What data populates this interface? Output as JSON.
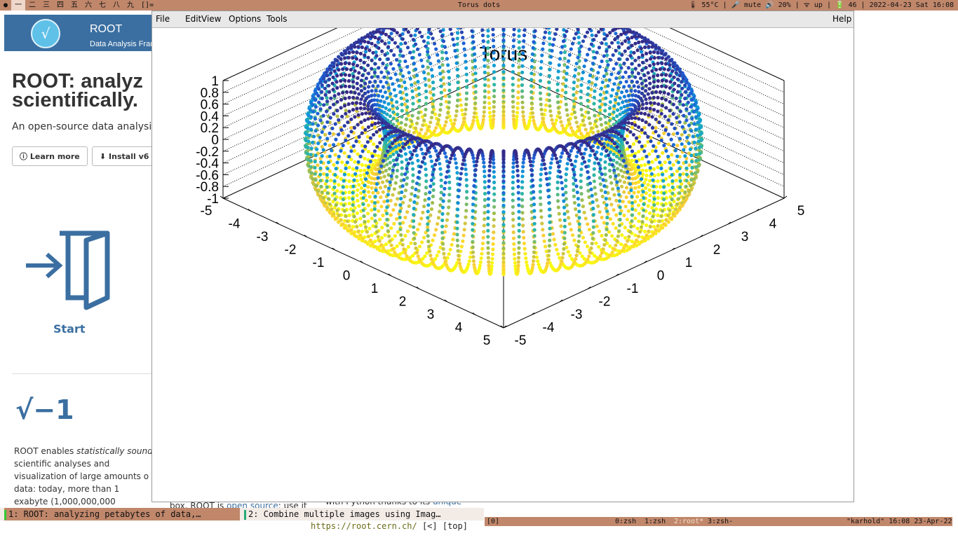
{
  "topbar": {
    "workspaces": [
      "一",
      "二",
      "三",
      "四",
      "五",
      "六",
      "七",
      "八",
      "九",
      "[]="
    ],
    "window_title": "Torus dots",
    "status": "🌡 55°C | 🎤 mute 🔊 20% | ᯤ up | 🔋 46 | 2022-04-23 Sat 16:08"
  },
  "site": {
    "brand": "ROOT",
    "brand_sub": "Data Analysis Fram",
    "headline": "ROOT: analyz\nscientifically.",
    "lead": "An open-source data analysis",
    "learn_more": "Learn more",
    "install": "Install v6",
    "start_label": "Start",
    "sqrt_symbol": "√−1",
    "para_1": "ROOT enables ",
    "para_italic": "statistically sound",
    "para_2": " scientific analyses and visualization of large amounts o data: today, more than 1 exabyte (1,000,000,000",
    "frag1_a": "box. ROOT is ",
    "frag1_link": "open source",
    "frag1_b": ": use it",
    "frag2_a": "with Python thanks to its ",
    "frag2_link": "unique"
  },
  "menu": {
    "file": "File",
    "edit": "Edit",
    "view": "View",
    "options": "Options",
    "tools": "Tools",
    "help": "Help"
  },
  "chart_data": {
    "type": "scatter",
    "title": "Torus",
    "xlabel": "",
    "ylabel": "",
    "zlabel": "",
    "xlim": [
      -5,
      5
    ],
    "ylim": [
      -5,
      5
    ],
    "zlim": [
      -1,
      1
    ],
    "x_ticks": [
      "-5",
      "-4",
      "-3",
      "-2",
      "-1",
      "0",
      "1",
      "2",
      "3",
      "4",
      "5"
    ],
    "y_ticks": [
      "-5",
      "-4",
      "-3",
      "-2",
      "-1",
      "0",
      "1",
      "2",
      "3",
      "4",
      "5"
    ],
    "z_ticks": [
      "-1",
      "-0.8",
      "-0.6",
      "-0.4",
      "-0.2",
      "0",
      "0.2",
      "0.4",
      "0.6",
      "0.8",
      "1"
    ],
    "torus": {
      "major_radius": 4,
      "minor_radius": 1,
      "rings": 80
    },
    "colormap": [
      "#352a87",
      "#1f5fd6",
      "#0f9dd8",
      "#2fb6a3",
      "#a5be4c",
      "#fbce38",
      "#f9fb0e"
    ],
    "grid": true
  },
  "tmux": {
    "tab1": "1: ROOT: analyzing petabytes of data,…",
    "tab2": "2: Combine multiple images using Imag…",
    "url": "https://root.cern.ch/",
    "nav": " [<] [top]",
    "session": "[0]",
    "win0": "0:zsh",
    "win1": "1:zsh",
    "win2": "2:root*",
    "win3": "3:zsh-",
    "host_info": "\"karhold\" 16:08 23-Apr-22"
  }
}
